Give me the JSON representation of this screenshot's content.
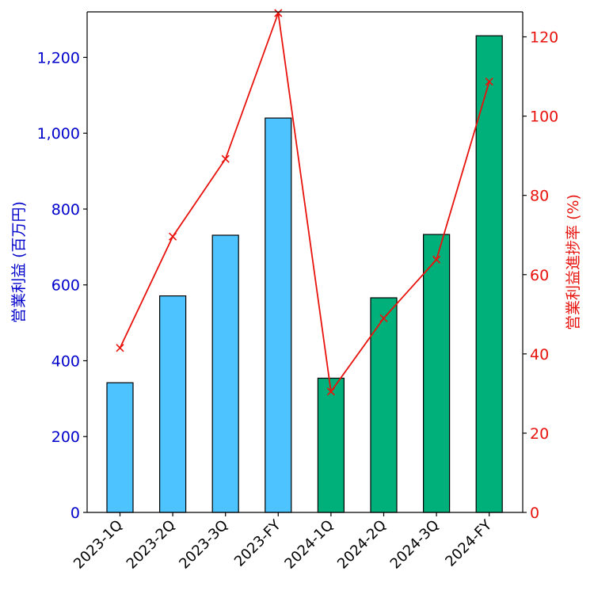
{
  "chart_data": {
    "type": "bar",
    "categories": [
      "2023-1Q",
      "2023-2Q",
      "2023-3Q",
      "2023-FY",
      "2024-1Q",
      "2024-2Q",
      "2024-3Q",
      "2024-FY"
    ],
    "series": [
      {
        "axis": "left",
        "type": "bar",
        "values": [
          342,
          571,
          731,
          1040,
          354,
          566,
          733,
          1257
        ],
        "colors": [
          "#4dc3ff",
          "#4dc3ff",
          "#4dc3ff",
          "#4dc3ff",
          "#00b07a",
          "#00b07a",
          "#00b07a",
          "#00b07a"
        ]
      },
      {
        "axis": "right",
        "type": "line",
        "marker": "x",
        "color": "#e8120c",
        "values": [
          41.5,
          69.6,
          89.2,
          126.0,
          30.5,
          49.0,
          63.8,
          108.7
        ]
      }
    ],
    "ylabel_left": "営業利益 (百万円)",
    "ylabel_right": "営業利益進捗率 (%)",
    "ylim_left": [
      0,
      1320
    ],
    "ylim_right": [
      0,
      126.3
    ],
    "yticks_left": [
      "0",
      "200",
      "400",
      "600",
      "800",
      "1,000",
      "1,200"
    ],
    "yticks_left_values": [
      0,
      200,
      400,
      600,
      800,
      1000,
      1200
    ],
    "yticks_right": [
      "0",
      "20",
      "40",
      "60",
      "80",
      "100",
      "120"
    ],
    "yticks_right_values": [
      0,
      20,
      40,
      60,
      80,
      100,
      120
    ],
    "left_axis_color": "#0000cc",
    "right_axis_color": "#e8120c",
    "grid": false,
    "legend": "none"
  }
}
